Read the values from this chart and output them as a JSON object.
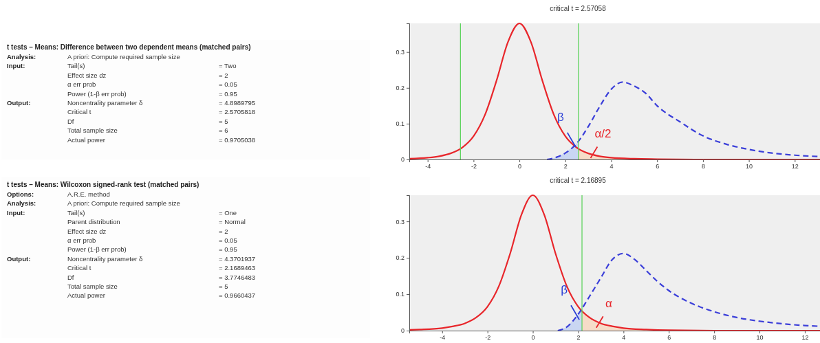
{
  "chart_data": [
    {
      "type": "other",
      "title": "t tests – Means: Difference between two dependent means (matched pairs)",
      "y_categories": [
        "Analysis:",
        "Input:",
        null,
        null,
        null,
        "Output:",
        null,
        null,
        null,
        null
      ],
      "categories": [
        "A priori: Compute required sample size",
        "Tail(s)",
        "Effect size dz",
        "α err prob",
        "Power (1-β err prob)",
        "Noncentrality parameter δ",
        "Critical t",
        "Df",
        "Total sample size",
        "Actual power"
      ],
      "value_labels": [
        null,
        "= Two",
        "= 2",
        "= 0.05",
        "= 0.95",
        "= 4.8989795",
        "= 2.5705818",
        "= 5",
        "= 6",
        "= 0.9705038"
      ]
    },
    {
      "type": "line",
      "title": "critical t = 2.57058",
      "xlim": [
        -4.8,
        13.1
      ],
      "ylim": [
        0,
        0.38
      ],
      "xticks": [
        -4,
        -2,
        0,
        2,
        4,
        6,
        8,
        10,
        12
      ],
      "yticks": [
        0,
        0.1,
        0.2,
        0.3
      ],
      "series": [
        {
          "type": "area",
          "color": "#c9d6f2",
          "x": [
            1.2,
            1.5,
            2,
            2.5,
            2.57058
          ],
          "values": [
            0,
            0.004,
            0.018,
            0.045,
            0.048
          ]
        },
        {
          "type": "area",
          "color": "#f6dcc8",
          "x": [
            2.57058,
            3,
            3.5,
            4,
            5,
            6,
            8,
            13.1
          ],
          "values": [
            0.031,
            0.017,
            0.009,
            0.005,
            0.002,
            0.001,
            0,
            0
          ]
        },
        {
          "type": "line",
          "color": "#e8262b",
          "line_style": "solid",
          "x": [
            -4.8,
            -4,
            -3.5,
            -3,
            -2.5,
            -2,
            -1.5,
            -1,
            -0.5,
            0,
            0.5,
            1,
            1.5,
            2,
            2.5,
            3,
            3.5,
            4,
            5,
            6,
            8,
            13.1
          ],
          "values": [
            0.002,
            0.005,
            0.009,
            0.017,
            0.033,
            0.065,
            0.125,
            0.22,
            0.328,
            0.38,
            0.328,
            0.22,
            0.125,
            0.065,
            0.033,
            0.017,
            0.009,
            0.005,
            0.002,
            0.001,
            0,
            0
          ]
        },
        {
          "type": "line",
          "color": "#3b3fd9",
          "line_style": "dashed",
          "x": [
            1.2,
            1.5,
            2,
            2.5,
            3,
            3.5,
            4,
            4.5,
            5,
            5.5,
            6,
            7,
            8,
            9,
            10,
            11,
            12,
            13.1
          ],
          "values": [
            0,
            0.004,
            0.018,
            0.045,
            0.092,
            0.148,
            0.196,
            0.216,
            0.205,
            0.185,
            0.15,
            0.105,
            0.066,
            0.043,
            0.028,
            0.018,
            0.012,
            0.008
          ]
        }
      ],
      "ref_lines": [
        {
          "axis": "x",
          "value": -2.57058,
          "color": "#5fd35f"
        },
        {
          "axis": "x",
          "value": 2.57058,
          "color": "#5fd35f"
        }
      ],
      "annotations": [
        {
          "text": "β",
          "x": 2.45,
          "y": 0.035
        },
        {
          "text": "α/2",
          "x": 3.1,
          "y": 0.004
        }
      ]
    },
    {
      "type": "other",
      "title": "t tests – Means: Wilcoxon signed-rank test (matched pairs)",
      "y_categories": [
        "Options:",
        "Analysis:",
        "Input:",
        null,
        null,
        null,
        null,
        "Output:",
        null,
        null,
        null,
        null
      ],
      "categories": [
        "A.R.E. method",
        "A priori: Compute required sample size",
        "Tail(s)",
        "Parent distribution",
        "Effect size dz",
        "α err prob",
        "Power (1-β err prob)",
        "Noncentrality parameter δ",
        "Critical t",
        "Df",
        "Total sample size",
        "Actual power"
      ],
      "value_labels": [
        null,
        null,
        "= One",
        "= Normal",
        "= 2",
        "= 0.05",
        "= 0.95",
        "= 4.3701937",
        "= 2.1689463",
        "= 3.7746483",
        "= 5",
        "= 0.9660437"
      ]
    },
    {
      "type": "line",
      "title": "critical t = 2.16895",
      "xlim": [
        -5.45,
        12.67
      ],
      "ylim": [
        0,
        0.372
      ],
      "xticks": [
        -4,
        -2,
        0,
        2,
        4,
        6,
        8,
        10,
        12
      ],
      "yticks": [
        0,
        0.1,
        0.2,
        0.3
      ],
      "series": [
        {
          "type": "area",
          "color": "#c9d6f2",
          "x": [
            1.1,
            1.5,
            2,
            2.16895
          ],
          "values": [
            0,
            0.01,
            0.045,
            0.056
          ]
        },
        {
          "type": "area",
          "color": "#f6dcc8",
          "x": [
            2.16895,
            2.5,
            3,
            3.5,
            4,
            5,
            6,
            8,
            12.67
          ],
          "values": [
            0.056,
            0.036,
            0.02,
            0.012,
            0.007,
            0.003,
            0.001,
            0,
            0
          ]
        },
        {
          "type": "line",
          "color": "#e8262b",
          "line_style": "solid",
          "x": [
            -5.45,
            -5,
            -4,
            -3.5,
            -3,
            -2.5,
            -2,
            -1.5,
            -1,
            -0.5,
            0,
            0.5,
            1,
            1.5,
            2,
            2.5,
            3,
            3.5,
            4,
            5,
            6,
            8,
            12.67
          ],
          "values": [
            0.002,
            0.003,
            0.007,
            0.012,
            0.02,
            0.036,
            0.066,
            0.122,
            0.212,
            0.319,
            0.372,
            0.319,
            0.212,
            0.122,
            0.066,
            0.036,
            0.02,
            0.012,
            0.007,
            0.003,
            0.001,
            0,
            0
          ]
        },
        {
          "type": "line",
          "color": "#3b3fd9",
          "line_style": "dashed",
          "x": [
            1.1,
            1.5,
            2,
            2.5,
            3,
            3.5,
            4,
            4.5,
            5,
            5.5,
            6,
            7,
            8,
            9,
            10,
            11,
            12,
            12.67
          ],
          "values": [
            0,
            0.01,
            0.045,
            0.094,
            0.145,
            0.195,
            0.212,
            0.195,
            0.165,
            0.135,
            0.11,
            0.075,
            0.052,
            0.036,
            0.026,
            0.019,
            0.014,
            0.012
          ]
        }
      ],
      "ref_lines": [
        {
          "axis": "x",
          "value": 2.16895,
          "color": "#5fd35f"
        }
      ],
      "annotations": [
        {
          "text": "β",
          "x": 2.05,
          "y": 0.03
        },
        {
          "text": "α",
          "x": 2.8,
          "y": 0.008
        }
      ]
    }
  ]
}
